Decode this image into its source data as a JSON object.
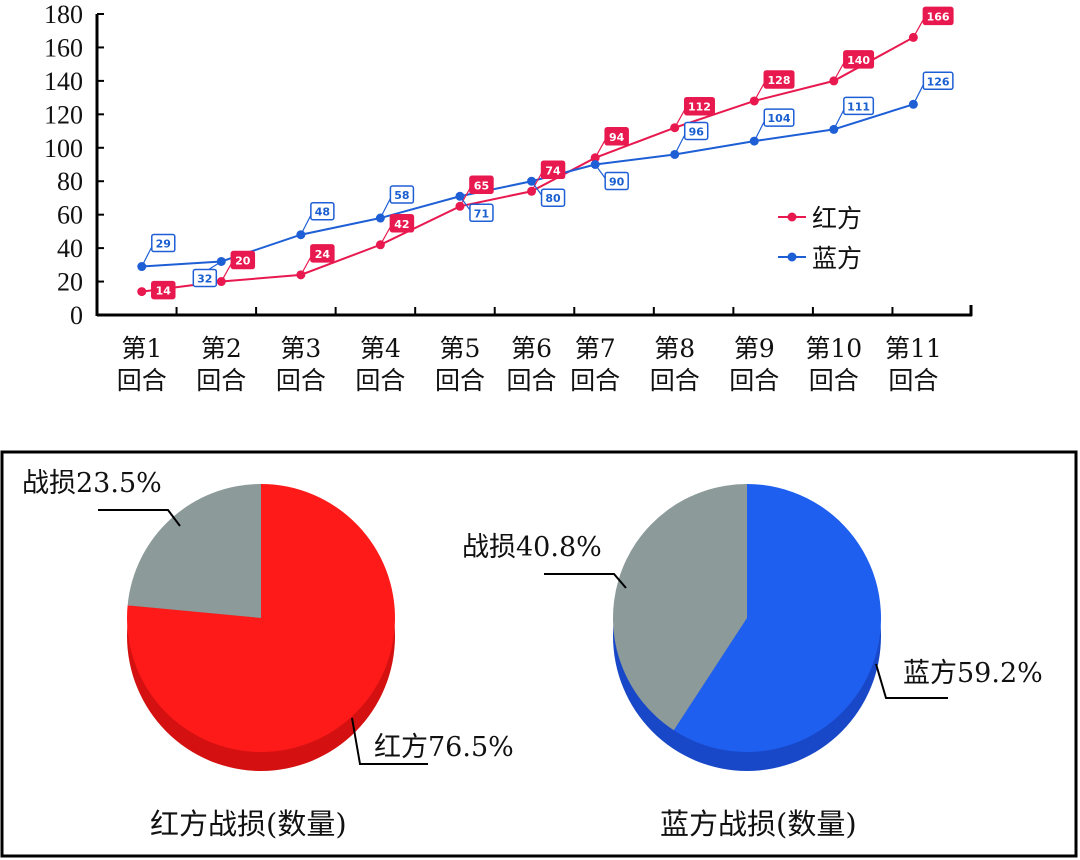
{
  "chart_data": [
    {
      "type": "line",
      "title": "",
      "xlabel": "",
      "ylabel": "",
      "ylim": [
        0,
        180
      ],
      "yticks": [
        0,
        20,
        40,
        60,
        80,
        100,
        120,
        140,
        160,
        180
      ],
      "categories": [
        [
          "第1",
          "回合"
        ],
        [
          "第2",
          "回合"
        ],
        [
          "第3",
          "回合"
        ],
        [
          "第4",
          "回合"
        ],
        [
          "第5",
          "回合"
        ],
        [
          "第6",
          "回合"
        ],
        [
          "第7",
          "回合"
        ],
        [
          "第8",
          "回合"
        ],
        [
          "第9",
          "回合"
        ],
        [
          "第10",
          "回合"
        ],
        [
          "第11",
          "回合"
        ]
      ],
      "legend_position": "right",
      "series": [
        {
          "name": "红方",
          "color": "#e8194f",
          "x": [
            0.5,
            1.5,
            2.5,
            3.5,
            4.5,
            5.4,
            6.2,
            7.2,
            8.2,
            9.2,
            10.2
          ],
          "values": [
            14,
            20,
            24,
            42,
            65,
            74,
            94,
            112,
            128,
            140,
            166
          ],
          "labels": [
            "14",
            "20",
            "24",
            "42",
            "65",
            "74",
            "94",
            "112",
            "128",
            "140",
            "166"
          ]
        },
        {
          "name": "蓝方",
          "color": "#1e5fd6",
          "x": [
            0.5,
            1.5,
            2.5,
            3.5,
            4.5,
            5.4,
            6.2,
            7.2,
            8.2,
            9.2,
            10.2
          ],
          "values": [
            29,
            32,
            48,
            58,
            71,
            80,
            90,
            96,
            104,
            111,
            126
          ],
          "labels": [
            "29",
            "32",
            "48",
            "58",
            "71",
            "80",
            "90",
            "96",
            "104",
            "111",
            "126"
          ]
        }
      ]
    },
    {
      "type": "pie",
      "title": "红方战损(数量)",
      "slices": [
        {
          "label": "红方76.5%",
          "value": 76.5,
          "color": "#ff1a1a"
        },
        {
          "label": "战损23.5%",
          "value": 23.5,
          "color": "#8c9a9a"
        }
      ]
    },
    {
      "type": "pie",
      "title": "蓝方战损(数量)",
      "slices": [
        {
          "label": "蓝方59.2%",
          "value": 59.2,
          "color": "#1f5ff0"
        },
        {
          "label": "战损40.8%",
          "value": 40.8,
          "color": "#8c9a9a"
        }
      ]
    }
  ]
}
